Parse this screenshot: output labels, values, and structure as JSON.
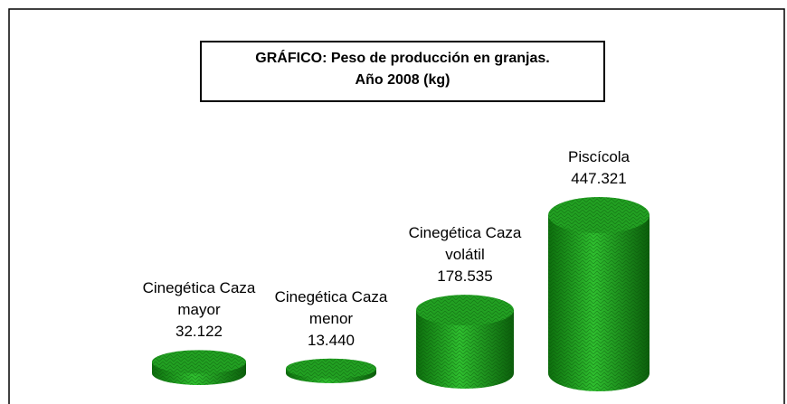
{
  "chart_data": {
    "type": "bar",
    "title": [
      "GRÁFICO: Peso de producción  en granjas.",
      "Año 2008 (kg)"
    ],
    "categories": [
      "Cinegética Caza mayor",
      "Cinegética Caza menor",
      "Cinegética Caza volátil",
      "Piscícola"
    ],
    "values": [
      32122,
      13440,
      178535,
      447321
    ],
    "value_labels": [
      "32.122",
      "13.440",
      "178.535",
      "447.321"
    ],
    "color": "#22a022"
  }
}
